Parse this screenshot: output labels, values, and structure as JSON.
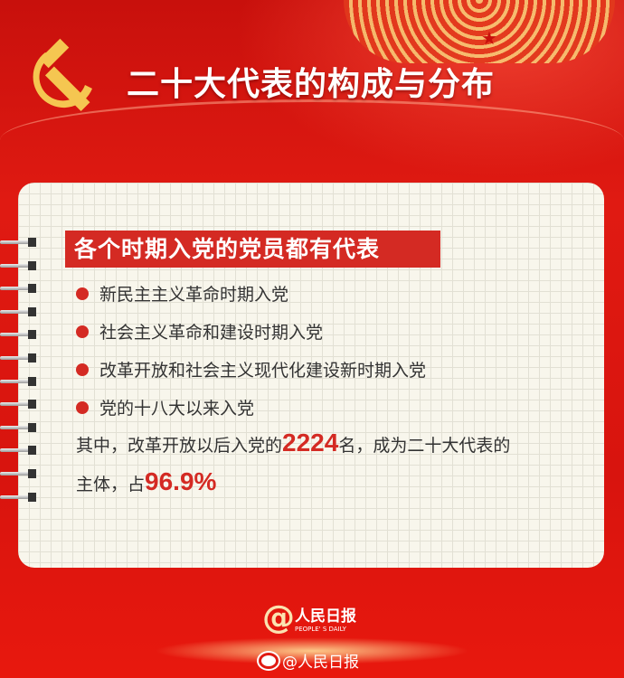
{
  "header": {
    "title": "二十大代表的构成与分布",
    "emblem": "hammer-sickle-icon"
  },
  "card": {
    "heading": "各个时期入党的党员都有代表",
    "bullets": [
      "新民主主义革命时期入党",
      "社会主义革命和建设时期入党",
      "改革开放和社会主义现代化建设新时期入党",
      "党的十八大以来入党"
    ],
    "para": {
      "line1_prefix": "其中，改革开放以后入党的",
      "count": "2224",
      "line1_suffix": "名，成为二十大代表的",
      "line2_prefix": "主体，占",
      "percent": "96.9%"
    }
  },
  "footer": {
    "logo_cn": "人民日报",
    "logo_en": "PEOPLE' S DAILY",
    "weibo": "@人民日报"
  },
  "colors": {
    "red": "#d42a23",
    "gold": "#f5c651"
  }
}
